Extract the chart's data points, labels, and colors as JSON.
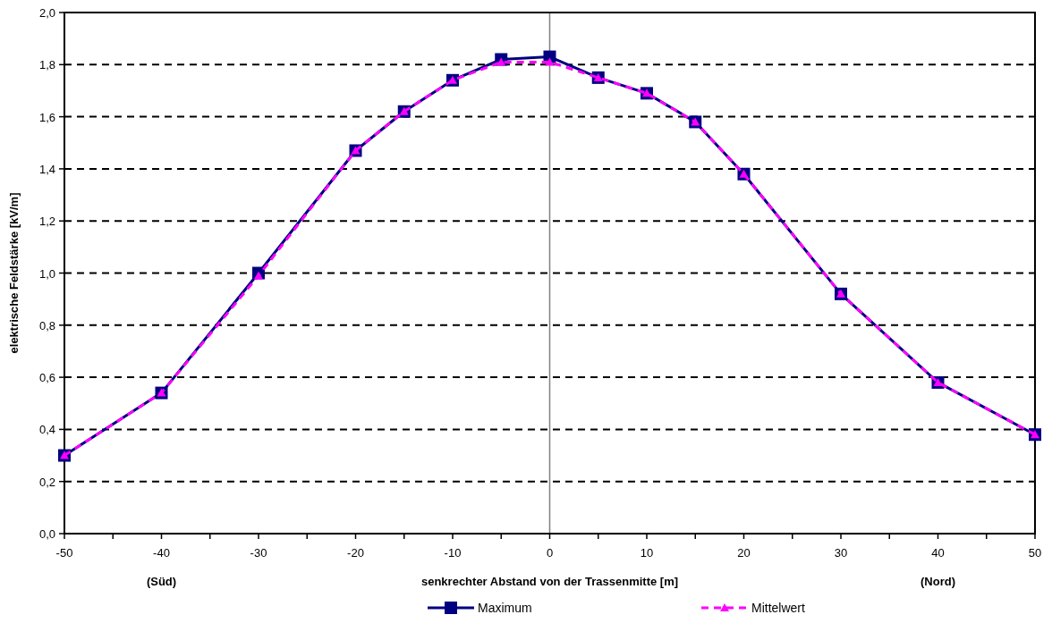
{
  "chart_data": {
    "type": "line",
    "xlabel": "senkrechter Abstand von der Trassenmitte [m]",
    "ylabel": "elektrische Feldstärke  [kV/m]",
    "x": [
      -50,
      -40,
      -30,
      -20,
      -15,
      -10,
      -5,
      0,
      5,
      10,
      15,
      20,
      30,
      40,
      50
    ],
    "series": [
      {
        "name": "Maximum",
        "color": "#000080",
        "marker": "square",
        "line_style": "solid",
        "values": [
          0.3,
          0.54,
          1.0,
          1.47,
          1.62,
          1.74,
          1.82,
          1.83,
          1.75,
          1.69,
          1.58,
          1.38,
          0.92,
          0.58,
          0.38
        ]
      },
      {
        "name": "Mittelwert",
        "color": "#ff00ff",
        "marker": "triangle",
        "line_style": "dashed",
        "values": [
          0.3,
          0.54,
          0.99,
          1.47,
          1.62,
          1.74,
          1.81,
          1.81,
          1.75,
          1.69,
          1.58,
          1.38,
          0.92,
          0.58,
          0.38
        ]
      }
    ],
    "xlim": [
      -50,
      50
    ],
    "xticks": [
      -50,
      {
        "value": -45,
        "label": null
      },
      -40,
      {
        "value": -35,
        "label": null
      },
      -30,
      {
        "value": -25,
        "label": null
      },
      -20,
      {
        "value": -15,
        "label": null
      },
      -10,
      {
        "value": -5,
        "label": null
      },
      0,
      {
        "value": 5,
        "label": null
      },
      10,
      {
        "value": 15,
        "label": null
      },
      20,
      {
        "value": 25,
        "label": null
      },
      30,
      {
        "value": 35,
        "label": null
      },
      40,
      {
        "value": 45,
        "label": null
      },
      50
    ],
    "ylim": [
      0,
      2
    ],
    "yticks": [
      {
        "value": 0,
        "label": "0,0"
      },
      {
        "value": 0.2,
        "label": "0,2"
      },
      {
        "value": 0.4,
        "label": "0,4"
      },
      {
        "value": 0.6,
        "label": "0,6"
      },
      {
        "value": 0.8,
        "label": "0,8"
      },
      {
        "value": 1,
        "label": "1,0"
      },
      {
        "value": 1.2,
        "label": "1,2"
      },
      {
        "value": 1.4,
        "label": "1,4"
      },
      {
        "value": 1.6,
        "label": "1,6"
      },
      {
        "value": 1.8,
        "label": "1,8"
      },
      {
        "value": 2,
        "label": "2,0"
      }
    ],
    "grid": "y",
    "ref_lines": [
      {
        "axis": "x",
        "value": 0,
        "color": "#808080"
      }
    ],
    "annotations": [
      "(Süd)",
      "(Nord)"
    ],
    "legend": "bottom"
  }
}
